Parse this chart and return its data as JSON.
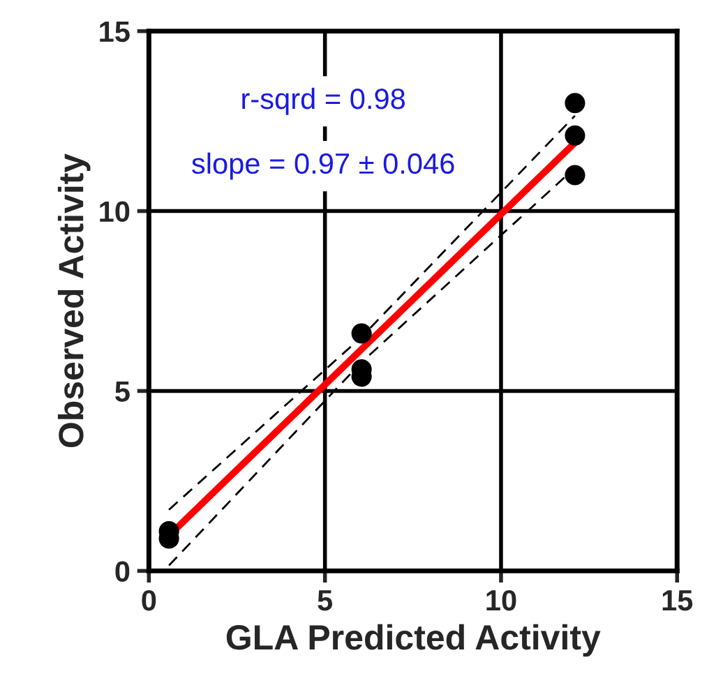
{
  "chart_data": {
    "type": "scatter",
    "xlabel": "GLA Predicted Activity",
    "ylabel": "Observed Activity",
    "xlim": [
      0,
      15
    ],
    "ylim": [
      0,
      15
    ],
    "xticks": [
      0,
      5,
      10,
      15
    ],
    "yticks": [
      0,
      5,
      10,
      15
    ],
    "grid": true,
    "series": [
      {
        "marker": "circle",
        "color": "#000000",
        "x": [
          0.57,
          0.57,
          6.04,
          6.04,
          6.04,
          12.1,
          12.1,
          12.1
        ],
        "values": [
          1.1,
          0.9,
          6.6,
          5.6,
          5.4,
          13.0,
          12.1,
          11.0
        ]
      },
      {
        "type": "line",
        "color": "#ff0000",
        "line_style": "solid",
        "x": [
          0.57,
          12.1
        ],
        "values": [
          0.98,
          11.9
        ]
      },
      {
        "type": "line",
        "color": "#000000",
        "line_style": "dashed",
        "x": [
          0.57,
          6.04,
          12.1
        ],
        "values": [
          1.7,
          6.5,
          12.65
        ]
      },
      {
        "type": "line",
        "color": "#000000",
        "line_style": "dashed",
        "x": [
          0.57,
          6.04,
          12.1
        ],
        "values": [
          0.15,
          5.8,
          11.2
        ]
      }
    ],
    "annotations": [
      "r-sqrd = 0.98",
      "slope = 0.97 ± 0.046"
    ]
  }
}
